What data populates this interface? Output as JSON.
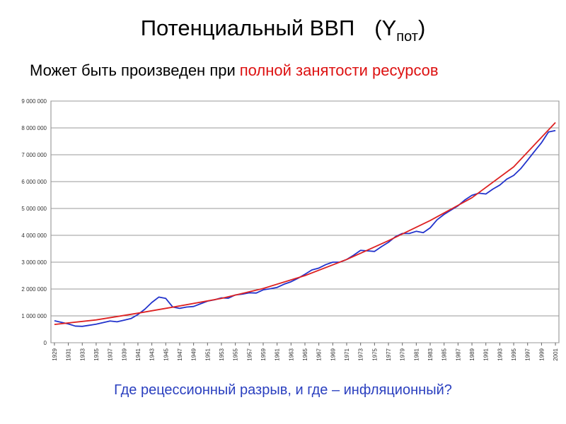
{
  "slide": {
    "title": {
      "text": "Потенциальный ВВП",
      "symbol": "(Y",
      "subscript": "пот",
      "close": ")"
    },
    "subtitle": {
      "plain": "Может быть произведен при",
      "highlight": "полной занятости ресурсов"
    },
    "question": "Где рецессионный разрыв, и где – инфляционный?"
  },
  "chart_data": {
    "type": "line",
    "x": [
      1929,
      1930,
      1931,
      1932,
      1933,
      1934,
      1935,
      1936,
      1937,
      1938,
      1939,
      1940,
      1941,
      1942,
      1943,
      1944,
      1945,
      1946,
      1947,
      1948,
      1949,
      1950,
      1951,
      1952,
      1953,
      1954,
      1955,
      1956,
      1957,
      1958,
      1959,
      1960,
      1961,
      1962,
      1963,
      1964,
      1965,
      1966,
      1967,
      1968,
      1969,
      1970,
      1971,
      1972,
      1973,
      1974,
      1975,
      1976,
      1977,
      1978,
      1979,
      1980,
      1981,
      1982,
      1983,
      1984,
      1985,
      1986,
      1987,
      1988,
      1989,
      1990,
      1991,
      1992,
      1993,
      1994,
      1995,
      1996,
      1997,
      1998,
      1999,
      2000,
      2001
    ],
    "series": [
      {
        "color": "#2233cc",
        "values": [
          820000,
          760000,
          700000,
          620000,
          610000,
          650000,
          690000,
          750000,
          810000,
          780000,
          840000,
          900000,
          1050000,
          1250000,
          1500000,
          1700000,
          1650000,
          1330000,
          1280000,
          1330000,
          1350000,
          1450000,
          1550000,
          1600000,
          1670000,
          1660000,
          1780000,
          1810000,
          1860000,
          1850000,
          1970000,
          2010000,
          2060000,
          2180000,
          2270000,
          2400000,
          2550000,
          2710000,
          2780000,
          2910000,
          3000000,
          3000000,
          3100000,
          3260000,
          3440000,
          3420000,
          3400000,
          3580000,
          3740000,
          3950000,
          4070000,
          4070000,
          4150000,
          4100000,
          4280000,
          4580000,
          4780000,
          4940000,
          5100000,
          5320000,
          5490000,
          5570000,
          5540000,
          5720000,
          5870000,
          6090000,
          6230000,
          6480000,
          6800000,
          7130000,
          7450000,
          7850000,
          7900000
        ]
      },
      {
        "color": "#dd2222",
        "x": [
          1929,
          1935,
          1941,
          1947,
          1953,
          1959,
          1965,
          1971,
          1977,
          1983,
          1989,
          1995,
          2001
        ],
        "values": [
          680000,
          850000,
          1100000,
          1370000,
          1650000,
          2020000,
          2500000,
          3100000,
          3800000,
          4550000,
          5400000,
          6550000,
          8200000
        ]
      }
    ],
    "xlim": [
      1928.5,
      2001.5
    ],
    "xticks": [
      1929,
      1931,
      1933,
      1935,
      1937,
      1939,
      1941,
      1943,
      1945,
      1947,
      1949,
      1951,
      1953,
      1955,
      1957,
      1959,
      1961,
      1963,
      1965,
      1967,
      1969,
      1971,
      1973,
      1975,
      1977,
      1979,
      1981,
      1983,
      1985,
      1987,
      1989,
      1991,
      1993,
      1995,
      1997,
      1999,
      2001
    ],
    "ylim": [
      0,
      9000000
    ],
    "yticks": [
      0,
      {
        "value": 1000000,
        "label": "1 000 000"
      },
      {
        "value": 2000000,
        "label": "2 000 000"
      },
      {
        "value": 3000000,
        "label": "3 000 000"
      },
      {
        "value": 4000000,
        "label": "4 000 000"
      },
      {
        "value": 5000000,
        "label": "5 000 000"
      },
      {
        "value": 6000000,
        "label": "6 000 000"
      },
      {
        "value": 7000000,
        "label": "7 000 000"
      },
      {
        "value": 8000000,
        "label": "8 000 000"
      },
      {
        "value": 9000000,
        "label": "9 000 000"
      }
    ],
    "grid": true
  }
}
